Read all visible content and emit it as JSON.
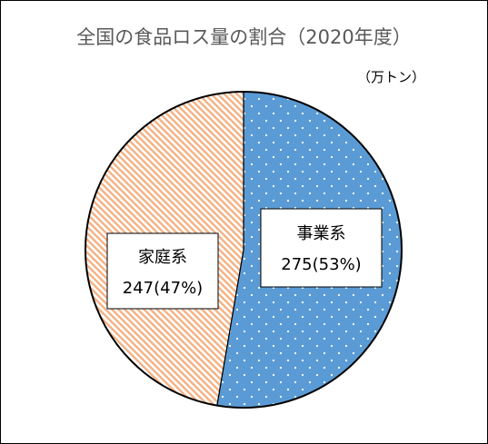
{
  "chart_data": {
    "type": "pie",
    "title": "全国の食品ロス量の割合（2020年度）",
    "unit": "（万トン）",
    "slices": [
      {
        "label": "事業系",
        "value": 275,
        "percent": 53,
        "value_text": "275(53%)",
        "color": "#5B9BD5",
        "pattern": "dots"
      },
      {
        "label": "家庭系",
        "value": 247,
        "percent": 47,
        "value_text": "247(47%)",
        "color": "#F4B183",
        "pattern": "diagonal-stripes"
      }
    ]
  }
}
